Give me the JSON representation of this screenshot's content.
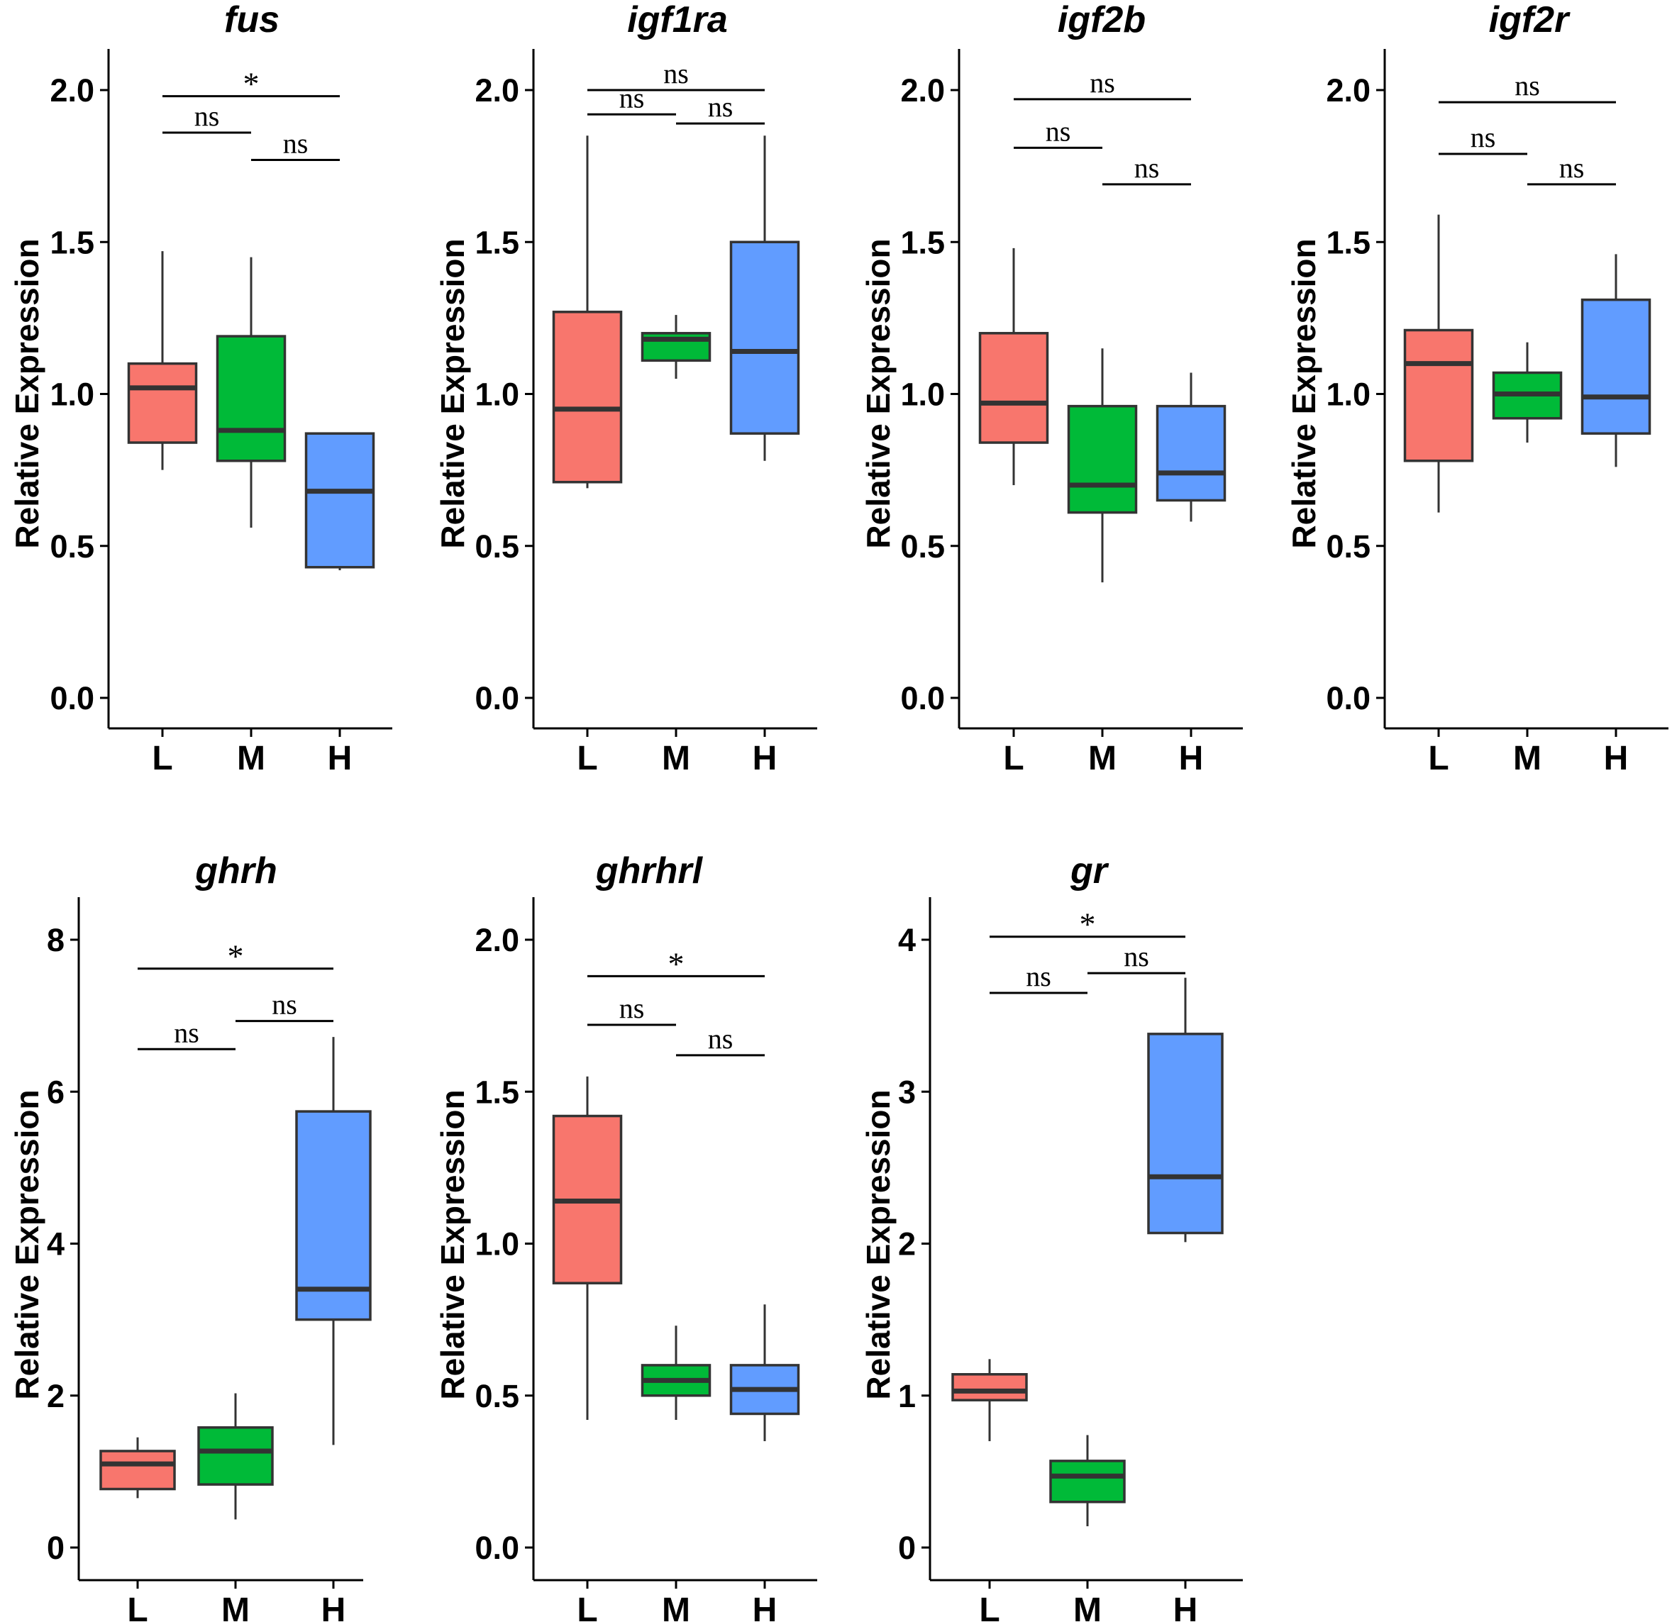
{
  "figure": {
    "ylabel": "Relative Expression",
    "groups": [
      "L",
      "M",
      "H"
    ],
    "group_colors": {
      "L": "#F8766D",
      "M": "#00BA38",
      "H": "#619CFF"
    }
  },
  "chart_data": [
    {
      "type": "box",
      "title": "fus",
      "ylabel": "Relative Expression",
      "categories": [
        "L",
        "M",
        "H"
      ],
      "ylim": [
        0,
        2.1
      ],
      "yticks": [
        "0.0",
        "0.5",
        "1.0",
        "1.5",
        "2.0"
      ],
      "ytick_values": [
        0,
        0.5,
        1.0,
        1.5,
        2.0
      ],
      "boxes": [
        {
          "group": "L",
          "min": 0.75,
          "q1": 0.84,
          "median": 1.02,
          "q3": 1.1,
          "max": 1.47
        },
        {
          "group": "M",
          "min": 0.56,
          "q1": 0.78,
          "median": 0.88,
          "q3": 1.19,
          "max": 1.45
        },
        {
          "group": "H",
          "min": 0.42,
          "q1": 0.43,
          "median": 0.68,
          "q3": 0.87,
          "max": 0.87
        }
      ],
      "comparisons": [
        {
          "pair": [
            "L",
            "H"
          ],
          "label": "*",
          "y": 1.98
        },
        {
          "pair": [
            "L",
            "M"
          ],
          "label": "ns",
          "y": 1.86
        },
        {
          "pair": [
            "M",
            "H"
          ],
          "label": "ns",
          "y": 1.77
        }
      ]
    },
    {
      "type": "box",
      "title": "igf1ra",
      "ylabel": "Relative Expression",
      "categories": [
        "L",
        "M",
        "H"
      ],
      "ylim": [
        0,
        2.1
      ],
      "yticks": [
        "0.0",
        "0.5",
        "1.0",
        "1.5",
        "2.0"
      ],
      "ytick_values": [
        0,
        0.5,
        1.0,
        1.5,
        2.0
      ],
      "boxes": [
        {
          "group": "L",
          "min": 0.69,
          "q1": 0.71,
          "median": 0.95,
          "q3": 1.27,
          "max": 1.85
        },
        {
          "group": "M",
          "min": 1.05,
          "q1": 1.11,
          "median": 1.18,
          "q3": 1.2,
          "max": 1.26
        },
        {
          "group": "H",
          "min": 0.78,
          "q1": 0.87,
          "median": 1.14,
          "q3": 1.5,
          "max": 1.85
        }
      ],
      "comparisons": [
        {
          "pair": [
            "L",
            "H"
          ],
          "label": "ns",
          "y": 2.0
        },
        {
          "pair": [
            "L",
            "M"
          ],
          "label": "ns",
          "y": 1.92
        },
        {
          "pair": [
            "M",
            "H"
          ],
          "label": "ns",
          "y": 1.89
        }
      ]
    },
    {
      "type": "box",
      "title": "igf2b",
      "ylabel": "Relative Expression",
      "categories": [
        "L",
        "M",
        "H"
      ],
      "ylim": [
        0,
        2.1
      ],
      "yticks": [
        "0.0",
        "0.5",
        "1.0",
        "1.5",
        "2.0"
      ],
      "ytick_values": [
        0,
        0.5,
        1.0,
        1.5,
        2.0
      ],
      "boxes": [
        {
          "group": "L",
          "min": 0.7,
          "q1": 0.84,
          "median": 0.97,
          "q3": 1.2,
          "max": 1.48
        },
        {
          "group": "M",
          "min": 0.38,
          "q1": 0.61,
          "median": 0.7,
          "q3": 0.96,
          "max": 1.15
        },
        {
          "group": "H",
          "min": 0.58,
          "q1": 0.65,
          "median": 0.74,
          "q3": 0.96,
          "max": 1.07
        }
      ],
      "comparisons": [
        {
          "pair": [
            "L",
            "H"
          ],
          "label": "ns",
          "y": 1.97
        },
        {
          "pair": [
            "L",
            "M"
          ],
          "label": "ns",
          "y": 1.81
        },
        {
          "pair": [
            "M",
            "H"
          ],
          "label": "ns",
          "y": 1.69
        }
      ]
    },
    {
      "type": "box",
      "title": "igf2r",
      "ylabel": "Relative Expression",
      "categories": [
        "L",
        "M",
        "H"
      ],
      "ylim": [
        0,
        2.1
      ],
      "yticks": [
        "0.0",
        "0.5",
        "1.0",
        "1.5",
        "2.0"
      ],
      "ytick_values": [
        0,
        0.5,
        1.0,
        1.5,
        2.0
      ],
      "boxes": [
        {
          "group": "L",
          "min": 0.61,
          "q1": 0.78,
          "median": 1.1,
          "q3": 1.21,
          "max": 1.59
        },
        {
          "group": "M",
          "min": 0.84,
          "q1": 0.92,
          "median": 1.0,
          "q3": 1.07,
          "max": 1.17
        },
        {
          "group": "H",
          "min": 0.76,
          "q1": 0.87,
          "median": 0.99,
          "q3": 1.31,
          "max": 1.46
        }
      ],
      "comparisons": [
        {
          "pair": [
            "L",
            "H"
          ],
          "label": "ns",
          "y": 1.96
        },
        {
          "pair": [
            "L",
            "M"
          ],
          "label": "ns",
          "y": 1.79
        },
        {
          "pair": [
            "M",
            "H"
          ],
          "label": "ns",
          "y": 1.69
        }
      ]
    },
    {
      "type": "box",
      "title": "ghrh",
      "ylabel": "Relative Expression",
      "categories": [
        "L",
        "M",
        "H"
      ],
      "ylim": [
        0,
        8.4
      ],
      "yticks": [
        "0",
        "2",
        "4",
        "6",
        "8"
      ],
      "ytick_values": [
        0,
        2,
        4,
        6,
        8
      ],
      "boxes": [
        {
          "group": "L",
          "min": 0.65,
          "q1": 0.77,
          "median": 1.1,
          "q3": 1.27,
          "max": 1.45
        },
        {
          "group": "M",
          "min": 0.37,
          "q1": 0.83,
          "median": 1.27,
          "q3": 1.58,
          "max": 2.03
        },
        {
          "group": "H",
          "min": 1.35,
          "q1": 3.0,
          "median": 3.4,
          "q3": 5.74,
          "max": 6.72
        }
      ],
      "comparisons": [
        {
          "pair": [
            "L",
            "H"
          ],
          "label": "*",
          "y": 7.62
        },
        {
          "pair": [
            "L",
            "M"
          ],
          "label": "ns",
          "y": 6.56
        },
        {
          "pair": [
            "M",
            "H"
          ],
          "label": "ns",
          "y": 6.93
        }
      ]
    },
    {
      "type": "box",
      "title": "ghrhrl",
      "ylabel": "Relative Expression",
      "categories": [
        "L",
        "M",
        "H"
      ],
      "ylim": [
        0,
        2.1
      ],
      "yticks": [
        "0.0",
        "0.5",
        "1.0",
        "1.5",
        "2.0"
      ],
      "ytick_values": [
        0,
        0.5,
        1.0,
        1.5,
        2.0
      ],
      "boxes": [
        {
          "group": "L",
          "min": 0.42,
          "q1": 0.87,
          "median": 1.14,
          "q3": 1.42,
          "max": 1.55
        },
        {
          "group": "M",
          "min": 0.42,
          "q1": 0.5,
          "median": 0.55,
          "q3": 0.6,
          "max": 0.73
        },
        {
          "group": "H",
          "min": 0.35,
          "q1": 0.44,
          "median": 0.52,
          "q3": 0.6,
          "max": 0.8
        }
      ],
      "comparisons": [
        {
          "pair": [
            "L",
            "H"
          ],
          "label": "*",
          "y": 1.88
        },
        {
          "pair": [
            "L",
            "M"
          ],
          "label": "ns",
          "y": 1.72
        },
        {
          "pair": [
            "M",
            "H"
          ],
          "label": "ns",
          "y": 1.62
        }
      ]
    },
    {
      "type": "box",
      "title": "gr",
      "ylabel": "Relative Expression",
      "categories": [
        "L",
        "M",
        "H"
      ],
      "ylim": [
        0,
        4.2
      ],
      "yticks": [
        "0",
        "1",
        "2",
        "3",
        "4"
      ],
      "ytick_values": [
        0,
        1,
        2,
        3,
        4
      ],
      "boxes": [
        {
          "group": "L",
          "min": 0.7,
          "q1": 0.97,
          "median": 1.03,
          "q3": 1.14,
          "max": 1.24
        },
        {
          "group": "M",
          "min": 0.14,
          "q1": 0.3,
          "median": 0.47,
          "q3": 0.57,
          "max": 0.74
        },
        {
          "group": "H",
          "min": 2.01,
          "q1": 2.07,
          "median": 2.44,
          "q3": 3.38,
          "max": 3.75
        }
      ],
      "comparisons": [
        {
          "pair": [
            "L",
            "H"
          ],
          "label": "*",
          "y": 4.02
        },
        {
          "pair": [
            "L",
            "M"
          ],
          "label": "ns",
          "y": 3.65
        },
        {
          "pair": [
            "M",
            "H"
          ],
          "label": "ns",
          "y": 3.78
        }
      ]
    }
  ]
}
